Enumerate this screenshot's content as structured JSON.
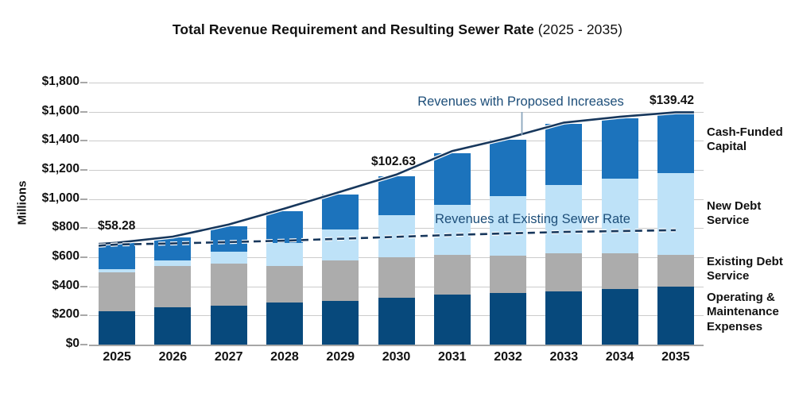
{
  "title": {
    "main": "Total Revenue Requirement and Resulting Sewer Rate",
    "suffix": " (2025 - 2035)"
  },
  "axes": {
    "y_title": "Millions",
    "y_ticks": [
      "$0",
      "$200",
      "$400",
      "$600",
      "$800",
      "$1,000",
      "$1,200",
      "$1,400",
      "$1,600",
      "$1,800"
    ],
    "x_ticks": [
      "2025",
      "2026",
      "2027",
      "2028",
      "2029",
      "2030",
      "2031",
      "2032",
      "2033",
      "2034",
      "2035"
    ]
  },
  "chart_data": {
    "type": "bar",
    "stacked": true,
    "title": "Total Revenue Requirement and Resulting Sewer Rate (2025 - 2035)",
    "ylabel": "Millions",
    "ylim": [
      0,
      1800
    ],
    "y_tick_step": 200,
    "grid": true,
    "categories": [
      2025,
      2026,
      2027,
      2028,
      2029,
      2030,
      2031,
      2032,
      2033,
      2034,
      2035
    ],
    "series": [
      {
        "name": "Operating & Maintenance Expenses",
        "color": "#07497c",
        "values": [
          230,
          255,
          267,
          289,
          298,
          320,
          344,
          355,
          367,
          382,
          398
        ]
      },
      {
        "name": "Existing Debt Service",
        "color": "#acacac",
        "values": [
          268,
          285,
          291,
          251,
          278,
          278,
          274,
          254,
          258,
          243,
          220
        ]
      },
      {
        "name": "New Debt Service",
        "color": "#bee2f8",
        "values": [
          18,
          36,
          82,
          158,
          213,
          293,
          340,
          413,
          473,
          515,
          562
        ]
      },
      {
        "name": "Cash-Funded Capital",
        "color": "#1c73bc",
        "values": [
          190,
          159,
          175,
          217,
          241,
          267,
          357,
          385,
          417,
          415,
          410
        ]
      }
    ],
    "lines": [
      {
        "name": "Revenues with Proposed Increases",
        "style": "solid",
        "color": "#17375c",
        "values": [
          700,
          742,
          825,
          935,
          1050,
          1168,
          1330,
          1420,
          1525,
          1565,
          1596
        ]
      },
      {
        "name": "Revenues at Existing Sewer Rate",
        "style": "dashed",
        "color": "#17375c",
        "values": [
          688,
          695,
          704,
          714,
          727,
          740,
          753,
          764,
          774,
          780,
          786
        ]
      }
    ],
    "annotations": [
      {
        "text": "$58.28",
        "year": 2025
      },
      {
        "text": "$102.63",
        "year": 2030
      },
      {
        "text": "$139.42",
        "year": 2035
      }
    ]
  },
  "colors": {
    "operating_maintenance": "#07497c",
    "existing_debt": "#acacac",
    "new_debt": "#bee2f8",
    "cash_funded": "#1c73bc",
    "revenue_line": "#17375c",
    "line_label_text": "#1d4e79",
    "gridline": "#cbcbcb",
    "axis_text": "#111111"
  }
}
